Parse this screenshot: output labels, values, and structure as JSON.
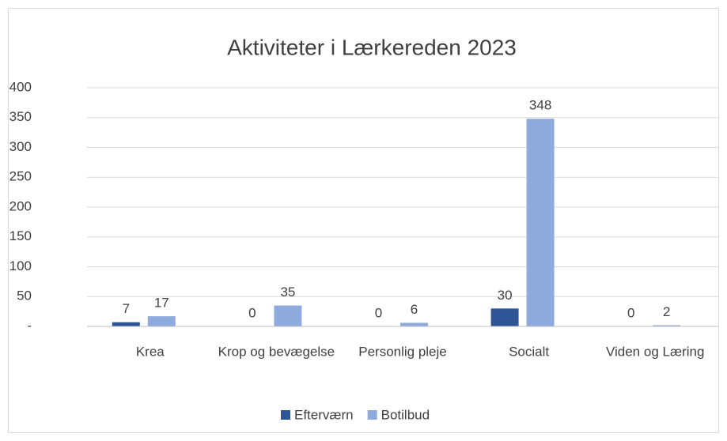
{
  "chart_data": {
    "type": "bar",
    "title": "Aktiviteter i Lærkereden 2023",
    "categories": [
      "Krea",
      "Krop og bevægelse",
      "Personlig pleje",
      "Socialt",
      "Viden og Læring"
    ],
    "series": [
      {
        "name": "Efterværn",
        "color": "#2f5597",
        "values": [
          7,
          0,
          0,
          30,
          0
        ]
      },
      {
        "name": "Botilbud",
        "color": "#8faadc",
        "values": [
          17,
          35,
          6,
          348,
          2
        ]
      }
    ],
    "ylim": [
      0,
      400
    ],
    "yticks": [
      {
        "value": 0,
        "label": "-"
      },
      50,
      100,
      150,
      200,
      250,
      300,
      350,
      400
    ],
    "grid": true,
    "legend": "bottom"
  }
}
